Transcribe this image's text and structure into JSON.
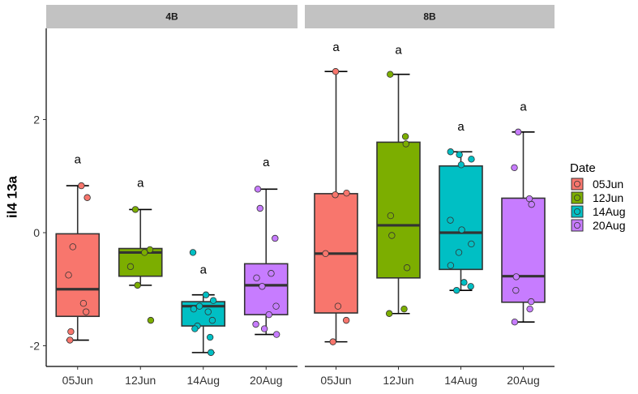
{
  "chart_data": {
    "type": "boxplot",
    "ylabel": "il4 13a",
    "xlabel": "",
    "ylim": [
      -2.4,
      3.6
    ],
    "yticks": [
      -2,
      0,
      2
    ],
    "categories": [
      "05Jun",
      "12Jun",
      "14Aug",
      "20Aug"
    ],
    "legend": {
      "title": "Date",
      "position": "right",
      "entries": [
        {
          "label": "05Jun",
          "color": "#F8766D"
        },
        {
          "label": "12Jun",
          "color": "#7CAE00"
        },
        {
          "label": "14Aug",
          "color": "#00BFC4"
        },
        {
          "label": "20Aug",
          "color": "#C77CFF"
        }
      ]
    },
    "grid": false,
    "panels": [
      {
        "strip": "4B",
        "groups": [
          {
            "date": "05Jun",
            "color": "#F8766D",
            "min": -1.9,
            "q1": -1.48,
            "median": -1.0,
            "q3": -0.02,
            "max": 0.83,
            "letter": "a",
            "letter_y": 1.3,
            "points": [
              0.83,
              0.62,
              -0.25,
              -0.75,
              -1.25,
              -1.4,
              -1.75,
              -1.9
            ]
          },
          {
            "date": "12Jun",
            "color": "#7CAE00",
            "min": -0.93,
            "q1": -0.77,
            "median": -0.35,
            "q3": -0.28,
            "max": 0.41,
            "letter": "a",
            "letter_y": 0.88,
            "points": [
              0.41,
              -0.3,
              -0.35,
              -0.6,
              -0.93,
              -1.55
            ]
          },
          {
            "date": "14Aug",
            "color": "#00BFC4",
            "min": -2.12,
            "q1": -1.65,
            "median": -1.3,
            "q3": -1.22,
            "max": -1.1,
            "letter": "a",
            "letter_y": -0.65,
            "points": [
              -0.35,
              -1.1,
              -1.2,
              -1.3,
              -1.35,
              -1.4,
              -1.55,
              -1.65,
              -1.7,
              -1.85,
              -2.12
            ]
          },
          {
            "date": "20Aug",
            "color": "#C77CFF",
            "min": -1.8,
            "q1": -1.45,
            "median": -0.93,
            "q3": -0.55,
            "max": 0.77,
            "letter": "a",
            "letter_y": 1.25,
            "points": [
              0.77,
              0.43,
              -0.1,
              -0.72,
              -0.8,
              -0.95,
              -1.3,
              -1.45,
              -1.62,
              -1.7,
              -1.8
            ]
          }
        ]
      },
      {
        "strip": "8B",
        "groups": [
          {
            "date": "05Jun",
            "color": "#F8766D",
            "min": -1.93,
            "q1": -1.42,
            "median": -0.37,
            "q3": 0.69,
            "max": 2.85,
            "letter": "a",
            "letter_y": 3.28,
            "points": [
              2.85,
              0.7,
              0.67,
              -0.37,
              -1.3,
              -1.55,
              -1.93
            ]
          },
          {
            "date": "12Jun",
            "color": "#7CAE00",
            "min": -1.43,
            "q1": -0.8,
            "median": 0.13,
            "q3": 1.6,
            "max": 2.8,
            "letter": "a",
            "letter_y": 3.23,
            "points": [
              2.8,
              1.7,
              1.57,
              0.3,
              -0.05,
              -0.62,
              -1.35,
              -1.43
            ]
          },
          {
            "date": "14Aug",
            "color": "#00BFC4",
            "min": -1.02,
            "q1": -0.65,
            "median": 0.0,
            "q3": 1.18,
            "max": 1.43,
            "letter": "a",
            "letter_y": 1.88,
            "points": [
              1.43,
              1.38,
              1.3,
              1.2,
              0.22,
              0.05,
              -0.2,
              -0.35,
              -0.58,
              -0.88,
              -0.95,
              -1.02
            ]
          },
          {
            "date": "20Aug",
            "color": "#C77CFF",
            "min": -1.58,
            "q1": -1.23,
            "median": -0.77,
            "q3": 0.61,
            "max": 1.78,
            "letter": "a",
            "letter_y": 2.23,
            "points": [
              1.78,
              1.15,
              0.6,
              0.5,
              -0.78,
              -1.02,
              -1.22,
              -1.35,
              -1.58
            ]
          }
        ]
      }
    ]
  }
}
